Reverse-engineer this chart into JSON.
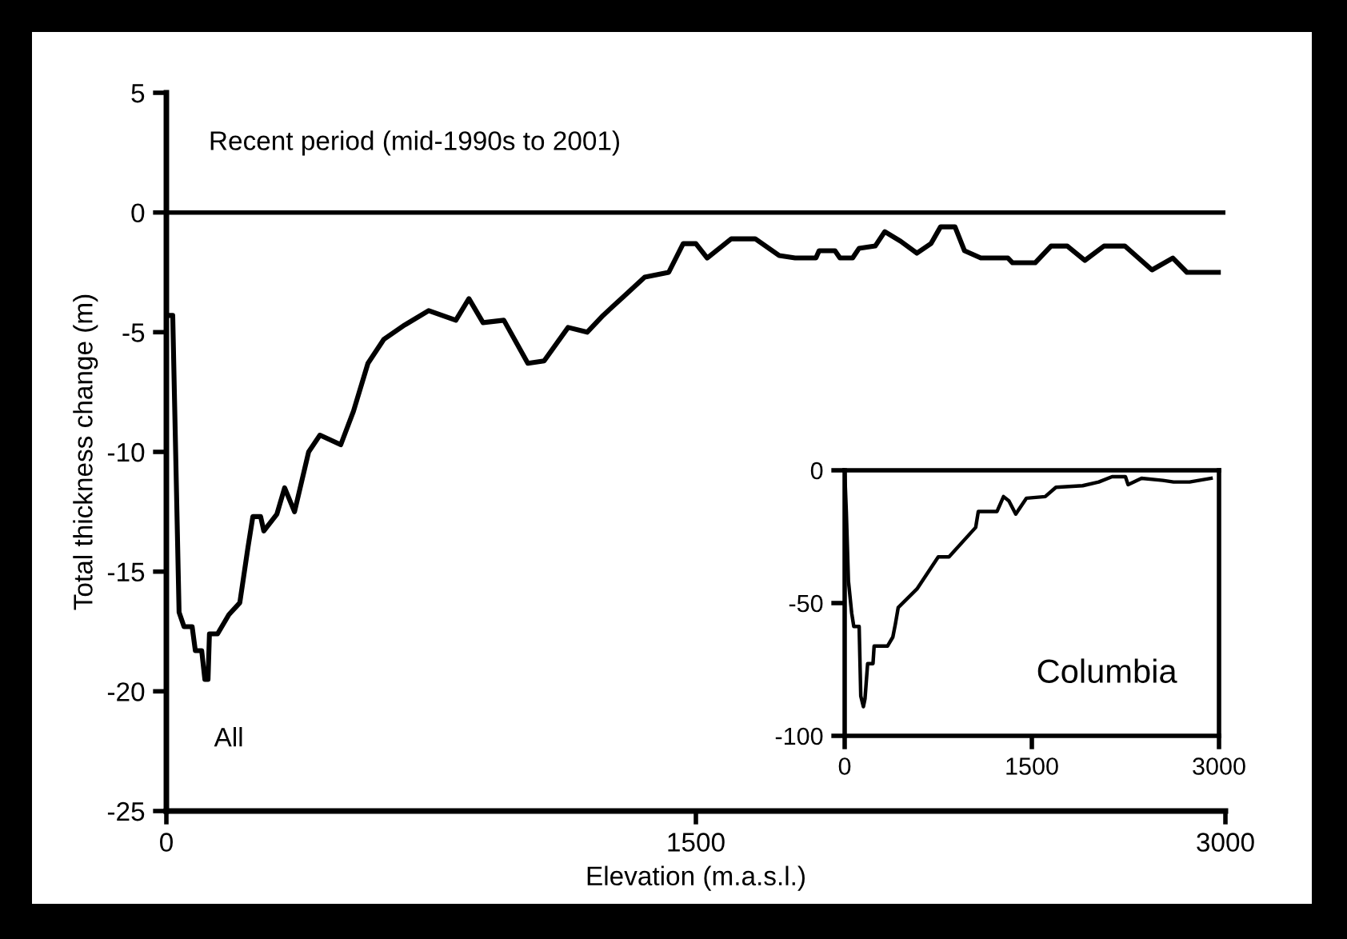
{
  "chart_data": [
    {
      "type": "line",
      "xlabel": "Elevation (m.a.s.l.)",
      "ylabel": "Total thickness change (m)",
      "annotations": [
        "Recent period (mid-1990s to 2001)"
      ],
      "series": [
        {
          "name": "All",
          "color": "#000000",
          "x": [
            0,
            18,
            36,
            50,
            73,
            82,
            100,
            109,
            118,
            122,
            145,
            177,
            208,
            231,
            245,
            267,
            276,
            313,
            335,
            363,
            403,
            435,
            494,
            530,
            571,
            616,
            675,
            743,
            820,
            857,
            897,
            956,
            1024,
            1070,
            1138,
            1192,
            1237,
            1296,
            1355,
            1423,
            1464,
            1500,
            1532,
            1600,
            1668,
            1736,
            1781,
            1840,
            1849,
            1894,
            1908,
            1944,
            1962,
            2008,
            2035,
            2080,
            2126,
            2166,
            2193,
            2234,
            2261,
            2307,
            2384,
            2397,
            2461,
            2506,
            2552,
            2602,
            2656,
            2715,
            2792,
            2851,
            2891,
            2980
          ],
          "values": [
            -4.3,
            -4.3,
            -16.7,
            -17.3,
            -17.3,
            -18.3,
            -18.3,
            -19.5,
            -19.5,
            -17.6,
            -17.6,
            -16.8,
            -16.3,
            -14,
            -12.7,
            -12.7,
            -13.3,
            -12.6,
            -11.5,
            -12.5,
            -10,
            -9.3,
            -9.7,
            -8.3,
            -6.3,
            -5.3,
            -4.7,
            -4.1,
            -4.5,
            -3.6,
            -4.6,
            -4.5,
            -6.3,
            -6.2,
            -4.8,
            -5,
            -4.3,
            -3.5,
            -2.7,
            -2.5,
            -1.3,
            -1.3,
            -1.9,
            -1.1,
            -1.1,
            -1.8,
            -1.9,
            -1.9,
            -1.6,
            -1.6,
            -1.9,
            -1.9,
            -1.5,
            -1.4,
            -0.8,
            -1.2,
            -1.7,
            -1.3,
            -0.6,
            -0.6,
            -1.6,
            -1.9,
            -1.9,
            -2.1,
            -2.1,
            -1.4,
            -1.4,
            -2.0,
            -1.4,
            -1.4,
            -2.4,
            -1.9,
            -2.5,
            -2.5
          ]
        }
      ],
      "ref_lines": [
        {
          "axis": "y",
          "value": 0,
          "color": "#000000"
        }
      ],
      "xlim": [
        0,
        3000
      ],
      "ylim": [
        -25,
        5
      ],
      "xticks": [
        0,
        1500,
        3000
      ],
      "yticks": [
        5,
        0,
        -5,
        -10,
        -15,
        -20,
        -25
      ],
      "grid": false,
      "legend": false
    },
    {
      "type": "line",
      "series": [
        {
          "name": "Columbia",
          "color": "#000000",
          "x": [
            0,
            13,
            30,
            56,
            73,
            116,
            129,
            150,
            163,
            184,
            227,
            236,
            343,
            386,
            407,
            429,
            579,
            750,
            836,
            1050,
            1071,
            1221,
            1273,
            1316,
            1371,
            1457,
            1607,
            1693,
            1907,
            2036,
            2143,
            2250,
            2271,
            2379,
            2550,
            2636,
            2764,
            2936
          ],
          "values": [
            0,
            -15.5,
            -41.6,
            -53.7,
            -58.8,
            -58.8,
            -85,
            -89,
            -86,
            -72.8,
            -72.8,
            -66.2,
            -66.2,
            -62.8,
            -57.7,
            -51.7,
            -44.7,
            -32.6,
            -32.6,
            -21.5,
            -15.5,
            -15.5,
            -9.9,
            -11.5,
            -16.5,
            -10.5,
            -9.9,
            -6.4,
            -5.8,
            -4.4,
            -2.4,
            -2.4,
            -5.4,
            -3,
            -3.8,
            -4.4,
            -4.4,
            -3
          ]
        }
      ],
      "xlim": [
        0,
        3000
      ],
      "ylim": [
        -100,
        0
      ],
      "xticks": [
        0,
        1500,
        3000
      ],
      "yticks": [
        0,
        -50,
        -100
      ],
      "grid": false,
      "legend": false
    }
  ]
}
